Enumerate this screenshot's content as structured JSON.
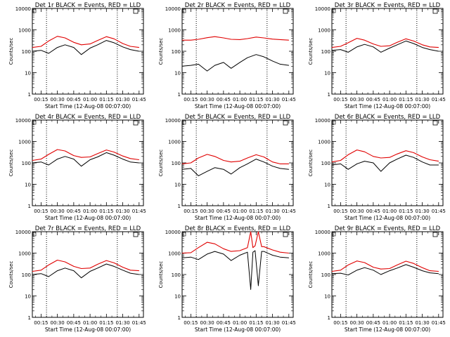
{
  "chart_data": {
    "type": "line",
    "scale": "log",
    "ylim": [
      1,
      10000
    ],
    "y_ticks": [
      "1",
      "10",
      "100",
      "1000",
      "10000"
    ],
    "xlim": [
      "00:07",
      "01:49"
    ],
    "x_ticks": [
      "00:15",
      "00:30",
      "00:45",
      "01:00",
      "01:15",
      "01:30",
      "01:45"
    ],
    "xlabel": "Start Time (12-Aug-08 00:07:00)",
    "ylabel": "Counts/sec",
    "colors": {
      "events": "#000000",
      "lld": "#e00000"
    },
    "dotted_lines_x": [
      "00:20",
      "01:25"
    ],
    "panels": [
      {
        "title": "Det 1r BLACK = Events, RED = LLD",
        "x": [
          "00:07",
          "00:15",
          "00:22",
          "00:30",
          "00:37",
          "00:45",
          "00:52",
          "01:00",
          "01:07",
          "01:15",
          "01:22",
          "01:30",
          "01:37",
          "01:45"
        ],
        "series": [
          {
            "key": "lld",
            "values": [
              150,
              170,
              300,
              500,
              420,
              260,
              200,
              220,
              320,
              480,
              380,
              230,
              170,
              150
            ]
          },
          {
            "key": "events",
            "values": [
              100,
              110,
              80,
              150,
              200,
              150,
              70,
              140,
              200,
              320,
              250,
              160,
              120,
              100
            ]
          }
        ]
      },
      {
        "title": "Det 2r BLACK = Events, RED = LLD",
        "x": [
          "00:07",
          "00:15",
          "00:22",
          "00:30",
          "00:37",
          "00:45",
          "00:52",
          "01:00",
          "01:07",
          "01:15",
          "01:22",
          "01:30",
          "01:37",
          "01:45"
        ],
        "series": [
          {
            "key": "lld",
            "values": [
              330,
              330,
              360,
              430,
              480,
              420,
              360,
              350,
              390,
              460,
              420,
              370,
              350,
              330
            ]
          },
          {
            "key": "events",
            "values": [
              20,
              22,
              25,
              12,
              22,
              30,
              16,
              30,
              50,
              70,
              55,
              35,
              25,
              22
            ]
          }
        ]
      },
      {
        "title": "Det 3r BLACK = Events, RED = LLD",
        "x": [
          "00:07",
          "00:15",
          "00:22",
          "00:30",
          "00:37",
          "00:45",
          "00:52",
          "01:00",
          "01:07",
          "01:15",
          "01:22",
          "01:30",
          "01:37",
          "01:45"
        ],
        "series": [
          {
            "key": "lld",
            "values": [
              150,
              170,
              250,
              400,
              330,
              220,
              170,
              180,
              260,
              380,
              300,
              200,
              160,
              150
            ]
          },
          {
            "key": "events",
            "values": [
              110,
              120,
              90,
              160,
              210,
              160,
              90,
              140,
              200,
              300,
              230,
              150,
              120,
              100
            ]
          }
        ]
      },
      {
        "title": "Det 4r BLACK = Events, RED = LLD",
        "x": [
          "00:07",
          "00:15",
          "00:22",
          "00:30",
          "00:37",
          "00:45",
          "00:52",
          "01:00",
          "01:07",
          "01:15",
          "01:22",
          "01:30",
          "01:37",
          "01:45"
        ],
        "series": [
          {
            "key": "lld",
            "values": [
              130,
              150,
              250,
              420,
              360,
              220,
              180,
              190,
              270,
              400,
              320,
              210,
              160,
              140
            ]
          },
          {
            "key": "events",
            "values": [
              100,
              110,
              80,
              150,
              200,
              150,
              70,
              140,
              190,
              300,
              230,
              150,
              110,
              100
            ]
          }
        ]
      },
      {
        "title": "Det 5r BLACK = Events, RED = LLD",
        "x": [
          "00:07",
          "00:15",
          "00:22",
          "00:30",
          "00:37",
          "00:45",
          "00:52",
          "01:00",
          "01:07",
          "01:15",
          "01:22",
          "01:30",
          "01:37",
          "01:45"
        ],
        "series": [
          {
            "key": "lld",
            "values": [
              90,
              100,
              170,
              250,
              200,
              130,
              110,
              120,
              170,
              240,
              190,
              110,
              90,
              90
            ]
          },
          {
            "key": "events",
            "values": [
              50,
              55,
              25,
              40,
              60,
              50,
              30,
              60,
              90,
              150,
              110,
              70,
              55,
              50
            ]
          }
        ]
      },
      {
        "title": "Det 6r BLACK = Events, RED = LLD",
        "x": [
          "00:07",
          "00:15",
          "00:22",
          "00:30",
          "00:37",
          "00:45",
          "00:52",
          "01:00",
          "01:07",
          "01:15",
          "01:22",
          "01:30",
          "01:37",
          "01:45"
        ],
        "series": [
          {
            "key": "lld",
            "values": [
              110,
              130,
              240,
              400,
              330,
              200,
              170,
              180,
              260,
              370,
              300,
              190,
              140,
              120
            ]
          },
          {
            "key": "events",
            "values": [
              80,
              90,
              50,
              90,
              120,
              100,
              40,
              100,
              150,
              230,
              180,
              110,
              80,
              80
            ]
          }
        ]
      },
      {
        "title": "Det 7r BLACK = Events, RED = LLD",
        "x": [
          "00:07",
          "00:15",
          "00:22",
          "00:30",
          "00:37",
          "00:45",
          "00:52",
          "01:00",
          "01:07",
          "01:15",
          "01:22",
          "01:30",
          "01:37",
          "01:45"
        ],
        "series": [
          {
            "key": "lld",
            "values": [
              140,
              160,
              280,
              470,
              390,
              240,
              190,
              200,
              300,
              450,
              350,
              220,
              160,
              150
            ]
          },
          {
            "key": "events",
            "values": [
              100,
              110,
              80,
              150,
              200,
              150,
              70,
              140,
              200,
              310,
              240,
              160,
              115,
              100
            ]
          }
        ]
      },
      {
        "title": "Det 8r BLACK = Events, RED = LLD",
        "x": [
          "00:07",
          "00:15",
          "00:22",
          "00:30",
          "00:37",
          "00:45",
          "00:52",
          "01:00",
          "01:07",
          "01:10",
          "01:12",
          "01:14",
          "01:17",
          "01:20",
          "01:22",
          "01:30",
          "01:37",
          "01:45"
        ],
        "series": [
          {
            "key": "lld",
            "values": [
              1000,
              1050,
              1800,
              3200,
              2700,
              1600,
              1200,
              1300,
              1800,
              10000,
              1800,
              2200,
              10000,
              2000,
              2000,
              1400,
              1100,
              1000
            ]
          },
          {
            "key": "events",
            "values": [
              600,
              650,
              500,
              900,
              1200,
              900,
              450,
              800,
              1100,
              20,
              1100,
              1300,
              30,
              1200,
              1200,
              800,
              650,
              600
            ]
          }
        ]
      },
      {
        "title": "Det 9r BLACK = Events, RED = LLD",
        "x": [
          "00:07",
          "00:15",
          "00:22",
          "00:30",
          "00:37",
          "00:45",
          "00:52",
          "01:00",
          "01:07",
          "01:15",
          "01:22",
          "01:30",
          "01:37",
          "01:45"
        ],
        "series": [
          {
            "key": "lld",
            "values": [
              140,
              160,
              280,
              430,
              360,
              220,
              180,
              190,
              280,
              420,
              330,
              210,
              150,
              140
            ]
          },
          {
            "key": "events",
            "values": [
              110,
              115,
              95,
              160,
              210,
              160,
              100,
              150,
              200,
              290,
              220,
              150,
              120,
              110
            ]
          }
        ]
      }
    ]
  }
}
